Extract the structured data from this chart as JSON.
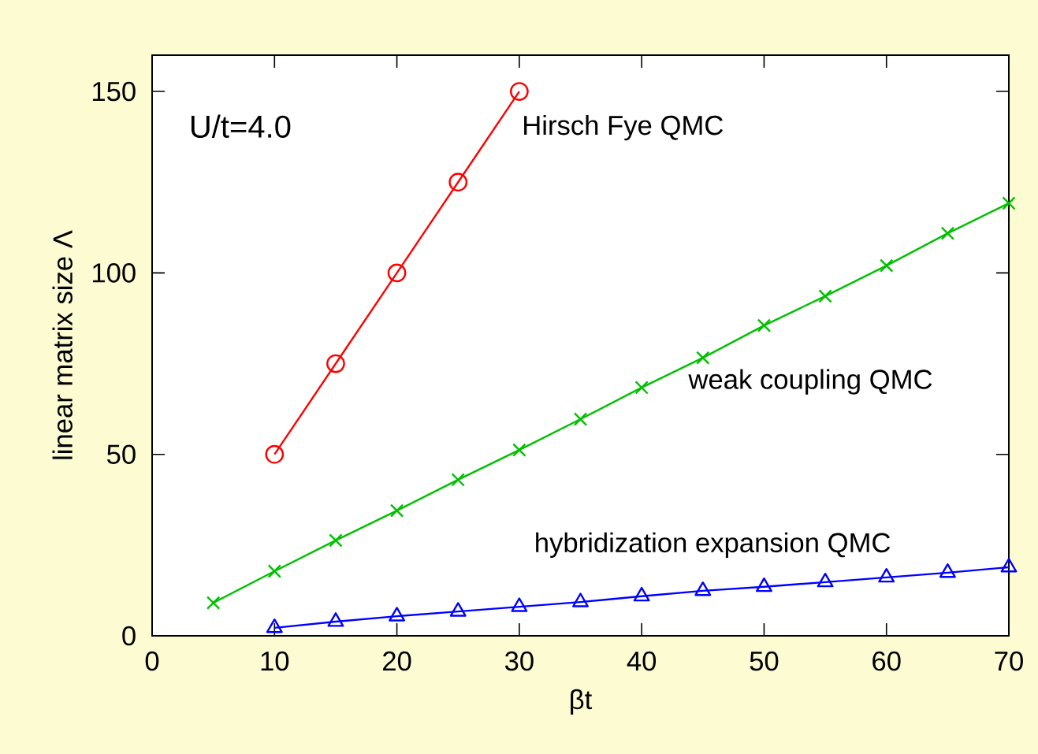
{
  "chart_data": {
    "type": "line",
    "xlabel": "βt",
    "ylabel": "linear matrix size Λ",
    "annotations": [
      {
        "text": "U/t=4.0"
      }
    ],
    "xlim": [
      0,
      70
    ],
    "xticks": [
      0,
      10,
      20,
      30,
      40,
      50,
      60,
      70
    ],
    "ylim": [
      0,
      160
    ],
    "yticks": [
      0,
      50,
      100,
      150
    ],
    "grid": false,
    "series": [
      {
        "name": "Hirsch Fye QMC",
        "color": "#ff0000",
        "marker": "circle",
        "x": [
          10,
          15,
          20,
          25,
          30
        ],
        "values": [
          50,
          75,
          100,
          125,
          150
        ]
      },
      {
        "name": "weak coupling QMC",
        "color": "#00c000",
        "marker": "cross",
        "x": [
          5,
          10,
          15,
          20,
          25,
          30,
          35,
          40,
          45,
          50,
          55,
          60,
          65,
          70
        ],
        "values": [
          9.1,
          17.8,
          26.3,
          34.5,
          43.0,
          51.2,
          59.7,
          68.4,
          76.6,
          85.5,
          93.6,
          102,
          110.9,
          119.2
        ]
      },
      {
        "name": "hybridization expansion QMC",
        "color": "#0000ff",
        "marker": "triangle",
        "x": [
          10,
          15,
          20,
          25,
          30,
          35,
          40,
          45,
          50,
          55,
          60,
          65,
          70
        ],
        "values": [
          2.2,
          3.9,
          5.4,
          6.7,
          8.0,
          9.3,
          10.9,
          12.4,
          13.5,
          14.8,
          16.1,
          17.4,
          18.9
        ]
      }
    ]
  }
}
